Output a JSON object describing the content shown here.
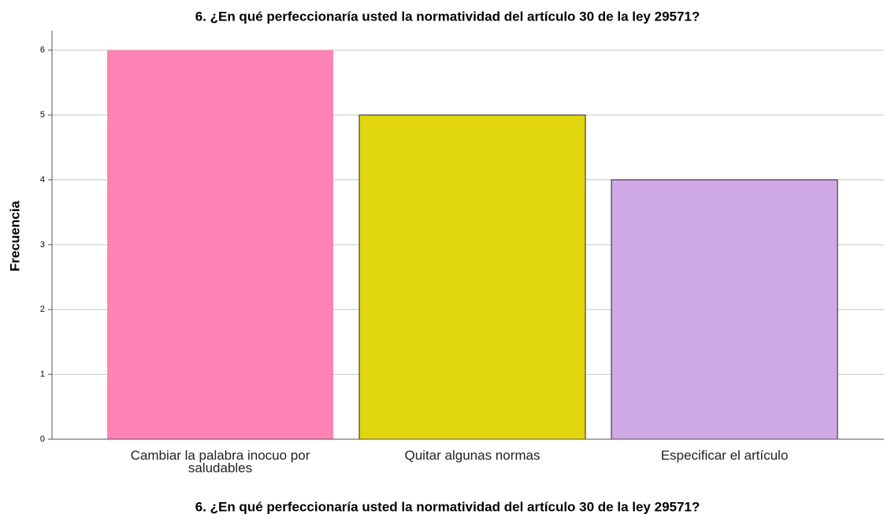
{
  "chart_data": {
    "type": "bar",
    "title": "6. ¿En qué perfeccionaría usted la normatividad del artículo 30 de la ley 29571?",
    "x_label": "6. ¿En qué perfeccionaría usted la normatividad del artículo 30 de la ley 29571?",
    "y_label": "Frecuencia",
    "categories": [
      "Cambiar la palabra inocuo por saludables",
      "Quitar algunas normas",
      "Especificar el artículo"
    ],
    "values": [
      6,
      5,
      4
    ],
    "colors": [
      "#ff83b5",
      "#e1d60d",
      "#cfa8e6"
    ],
    "ylim": [
      0,
      6.3
    ],
    "yticks": [
      0,
      1,
      2,
      3,
      4,
      5,
      6
    ],
    "grid": true
  }
}
